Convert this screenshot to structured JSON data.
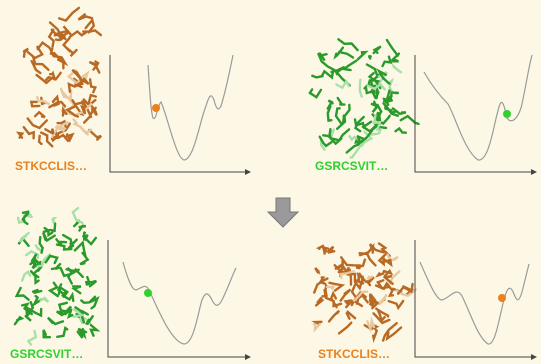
{
  "panels": [
    {
      "label": "STKCCLIS…"
    },
    {
      "label": "GSRCSVIT…"
    },
    {
      "label": "GSRCSVIT…"
    },
    {
      "label": "STKCCLIS…"
    }
  ]
}
